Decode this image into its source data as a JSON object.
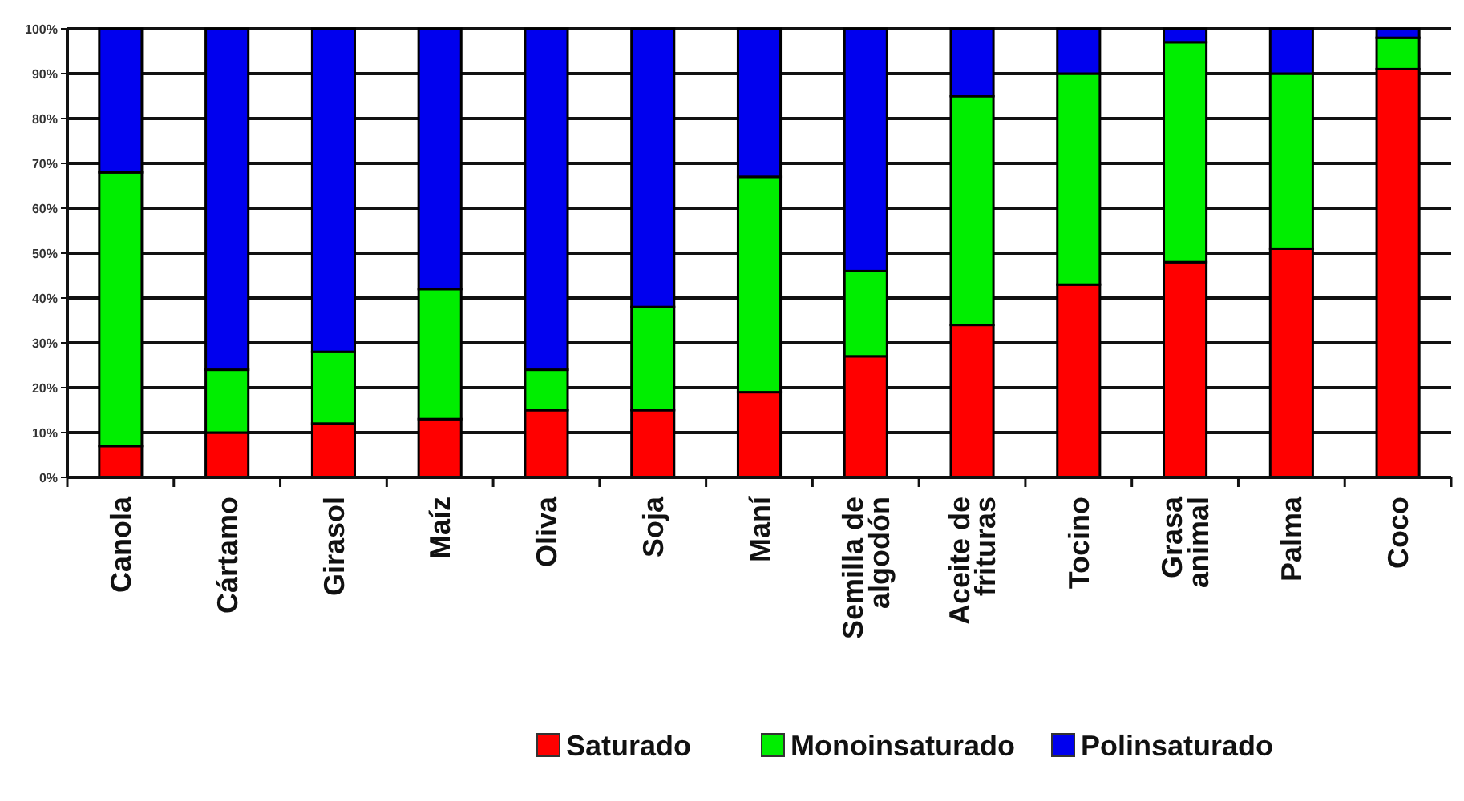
{
  "chart_data": {
    "type": "bar",
    "stacked": true,
    "categories": [
      "Canola",
      "Cártamo",
      "Girasol",
      "Maíz",
      "Oliva",
      "Soja",
      "Maní",
      "Semilla de\nalgodón",
      "Aceite de\nfrituras",
      "Tocino",
      "Grasa\nanimal",
      "Palma",
      "Coco"
    ],
    "series": [
      {
        "name": "Saturado",
        "color": "#ff0000",
        "values": [
          7,
          10,
          12,
          13,
          15,
          15,
          19,
          27,
          34,
          43,
          48,
          51,
          91
        ]
      },
      {
        "name": "Monoinsaturado",
        "color": "#00ee00",
        "values": [
          61,
          14,
          16,
          29,
          9,
          23,
          48,
          19,
          51,
          47,
          49,
          39,
          7
        ]
      },
      {
        "name": "Polinsaturado",
        "color": "#0000ee",
        "values": [
          32,
          76,
          72,
          58,
          76,
          62,
          33,
          54,
          15,
          10,
          3,
          10,
          2
        ]
      }
    ],
    "ylim": [
      0,
      100
    ],
    "yticks": [
      {
        "value": 0,
        "label": "0%"
      },
      {
        "value": 10,
        "label": "10%"
      },
      {
        "value": 20,
        "label": "20%"
      },
      {
        "value": 30,
        "label": "30%"
      },
      {
        "value": 40,
        "label": "40%"
      },
      {
        "value": 50,
        "label": "50%"
      },
      {
        "value": 60,
        "label": "60%"
      },
      {
        "value": 70,
        "label": "70%"
      },
      {
        "value": 80,
        "label": "80%"
      },
      {
        "value": 90,
        "label": "90%"
      },
      {
        "value": 100,
        "label": "100%"
      }
    ],
    "grid": "y",
    "legend": "bottom"
  }
}
